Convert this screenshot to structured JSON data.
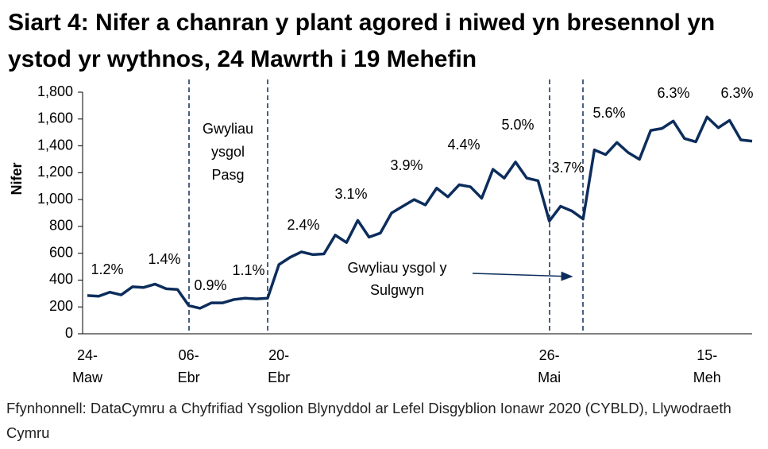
{
  "chart_data": {
    "type": "line",
    "title": "Siart 4: Nifer a chanran y plant agored i niwed yn bresennol yn ystod yr wythnos, 24 Mawrth i 19 Mehefin",
    "y_label": "Nifer",
    "source": "Ffynhonnell: DataCymru a Chyfrifiad Ysgolion Blynyddol ar Lefel Disgyblion Ionawr 2020 (CYBLD), Llywodraeth Cymru",
    "categories": [
      "24-Maw",
      null,
      null,
      null,
      null,
      null,
      null,
      null,
      null,
      "06-Ebr",
      null,
      null,
      null,
      null,
      null,
      null,
      null,
      "20-Ebr",
      null,
      null,
      null,
      null,
      null,
      null,
      null,
      null,
      null,
      null,
      null,
      null,
      null,
      null,
      null,
      null,
      null,
      null,
      null,
      null,
      null,
      null,
      null,
      "26-Mai",
      null,
      null,
      null,
      null,
      null,
      null,
      null,
      null,
      null,
      null,
      null,
      null,
      null,
      "15-Meh",
      null,
      null,
      null,
      null
    ],
    "series": [
      {
        "name": "Nifer",
        "color": "#0c2d5c",
        "values": [
          285,
          280,
          310,
          290,
          350,
          345,
          370,
          335,
          330,
          210,
          190,
          230,
          230,
          255,
          265,
          260,
          265,
          515,
          570,
          610,
          590,
          595,
          735,
          680,
          845,
          720,
          750,
          900,
          950,
          1000,
          960,
          1085,
          1020,
          1110,
          1095,
          1010,
          1225,
          1160,
          1280,
          1160,
          1140,
          840,
          950,
          915,
          855,
          1370,
          1335,
          1425,
          1350,
          1300,
          1515,
          1530,
          1585,
          1455,
          1430,
          1615,
          1535,
          1590,
          1445,
          1435
        ]
      }
    ],
    "ylim": [
      0,
      1800
    ],
    "yticks": [
      0,
      200,
      400,
      600,
      800,
      {
        "value": 1000,
        "label": "1,000"
      },
      {
        "value": 1200,
        "label": "1,200"
      },
      {
        "value": 1400,
        "label": "1,400"
      },
      {
        "value": 1600,
        "label": "1,600"
      },
      {
        "value": 1800,
        "label": "1,800"
      }
    ],
    "annotations": [
      "1.2%",
      "1.4%",
      "0.9%",
      "1.1%",
      "2.4%",
      "3.1%",
      "3.9%",
      "4.4%",
      "5.0%",
      "3.7%",
      "5.6%",
      "6.3%",
      "6.3%"
    ],
    "easter_label": [
      "Gwyliau",
      "ysgol",
      "Pasg"
    ],
    "whitsun_label": [
      "Gwyliau ysgol y",
      "Sulgwyn"
    ]
  }
}
